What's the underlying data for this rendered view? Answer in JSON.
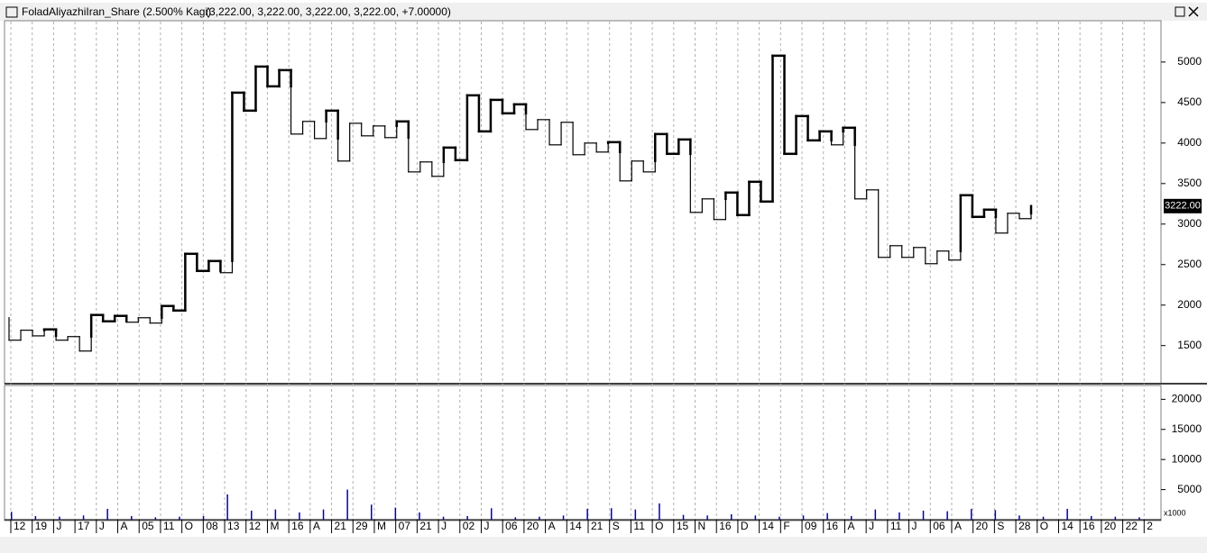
{
  "chart_data": [
    {
      "type": "kagi",
      "title": "FoladAliyazhiIran_Share (2.500% Kagi)",
      "subtitle": "(3,222.00, 3,222.00, 3,222.00, 3,222.00, +7.00000)",
      "series": [
        {
          "color": "#000000",
          "values": [
            1845,
            1567,
            1690,
            1620,
            1700,
            1567,
            1611,
            1433,
            1878,
            1800,
            1867,
            1789,
            1844,
            1778,
            1989,
            1933,
            2633,
            2422,
            2544,
            2400,
            4622,
            4400,
            4944,
            4700,
            4900,
            4111,
            4267,
            4056,
            4400,
            3778,
            4244,
            4089,
            4211,
            4067,
            4267,
            3644,
            3767,
            3589,
            3944,
            3789,
            4589,
            4144,
            4533,
            4367,
            4478,
            4167,
            4289,
            3978,
            4256,
            3856,
            4000,
            3889,
            4011,
            3533,
            3778,
            3644,
            4111,
            3867,
            4044,
            3144,
            3311,
            3056,
            3389,
            3111,
            3522,
            3278,
            5078,
            3867,
            4333,
            4033,
            4144,
            3978,
            4189,
            3311,
            3422,
            2589,
            2733,
            2589,
            2711,
            2511,
            2667,
            2556,
            3356,
            3089,
            3178,
            2889,
            3133,
            3067,
            3222
          ]
        }
      ],
      "last_value": {
        "value": 3222,
        "label": "3222.00"
      },
      "ylim": [
        1030,
        5510
      ],
      "yticks": [
        1500,
        2000,
        2500,
        3000,
        3500,
        4000,
        4500,
        5000
      ],
      "grid": true
    },
    {
      "type": "volume",
      "unit_label": "x1000",
      "series": [
        {
          "color": "#0000c0",
          "values": [
            1300,
            600,
            500,
            700,
            1800,
            600,
            400,
            500,
            600,
            4200,
            1500,
            1700,
            1200,
            1700,
            5000,
            2500,
            2000,
            1200,
            500,
            600,
            1900,
            400,
            500,
            700,
            1800,
            1900,
            1700,
            2700,
            800,
            700,
            900,
            700,
            500,
            700,
            1100,
            600,
            1700,
            1200,
            1500,
            1400,
            1800,
            1600,
            700,
            500,
            1800,
            600,
            500,
            400
          ]
        }
      ],
      "ylim": [
        0,
        22300
      ],
      "yticks": [
        5000,
        10000,
        15000,
        20000
      ]
    },
    {
      "type": "axis",
      "categories": [
        "12",
        "19",
        "J",
        "17",
        "J",
        "A",
        "05",
        "11",
        "O",
        "08",
        "13",
        "12",
        "M",
        "16",
        "A",
        "21",
        "29",
        "M",
        "07",
        "21",
        "J",
        "02",
        "J",
        "06",
        "20",
        "A",
        "14",
        "21",
        "S",
        "11",
        "O",
        "15",
        "N",
        "16",
        "D",
        "14",
        "F",
        "09",
        "16",
        "A",
        "J",
        "11",
        "J",
        "06",
        "A",
        "20",
        "S",
        "28",
        "O",
        "14",
        "16",
        "20",
        "22",
        "2"
      ]
    }
  ]
}
